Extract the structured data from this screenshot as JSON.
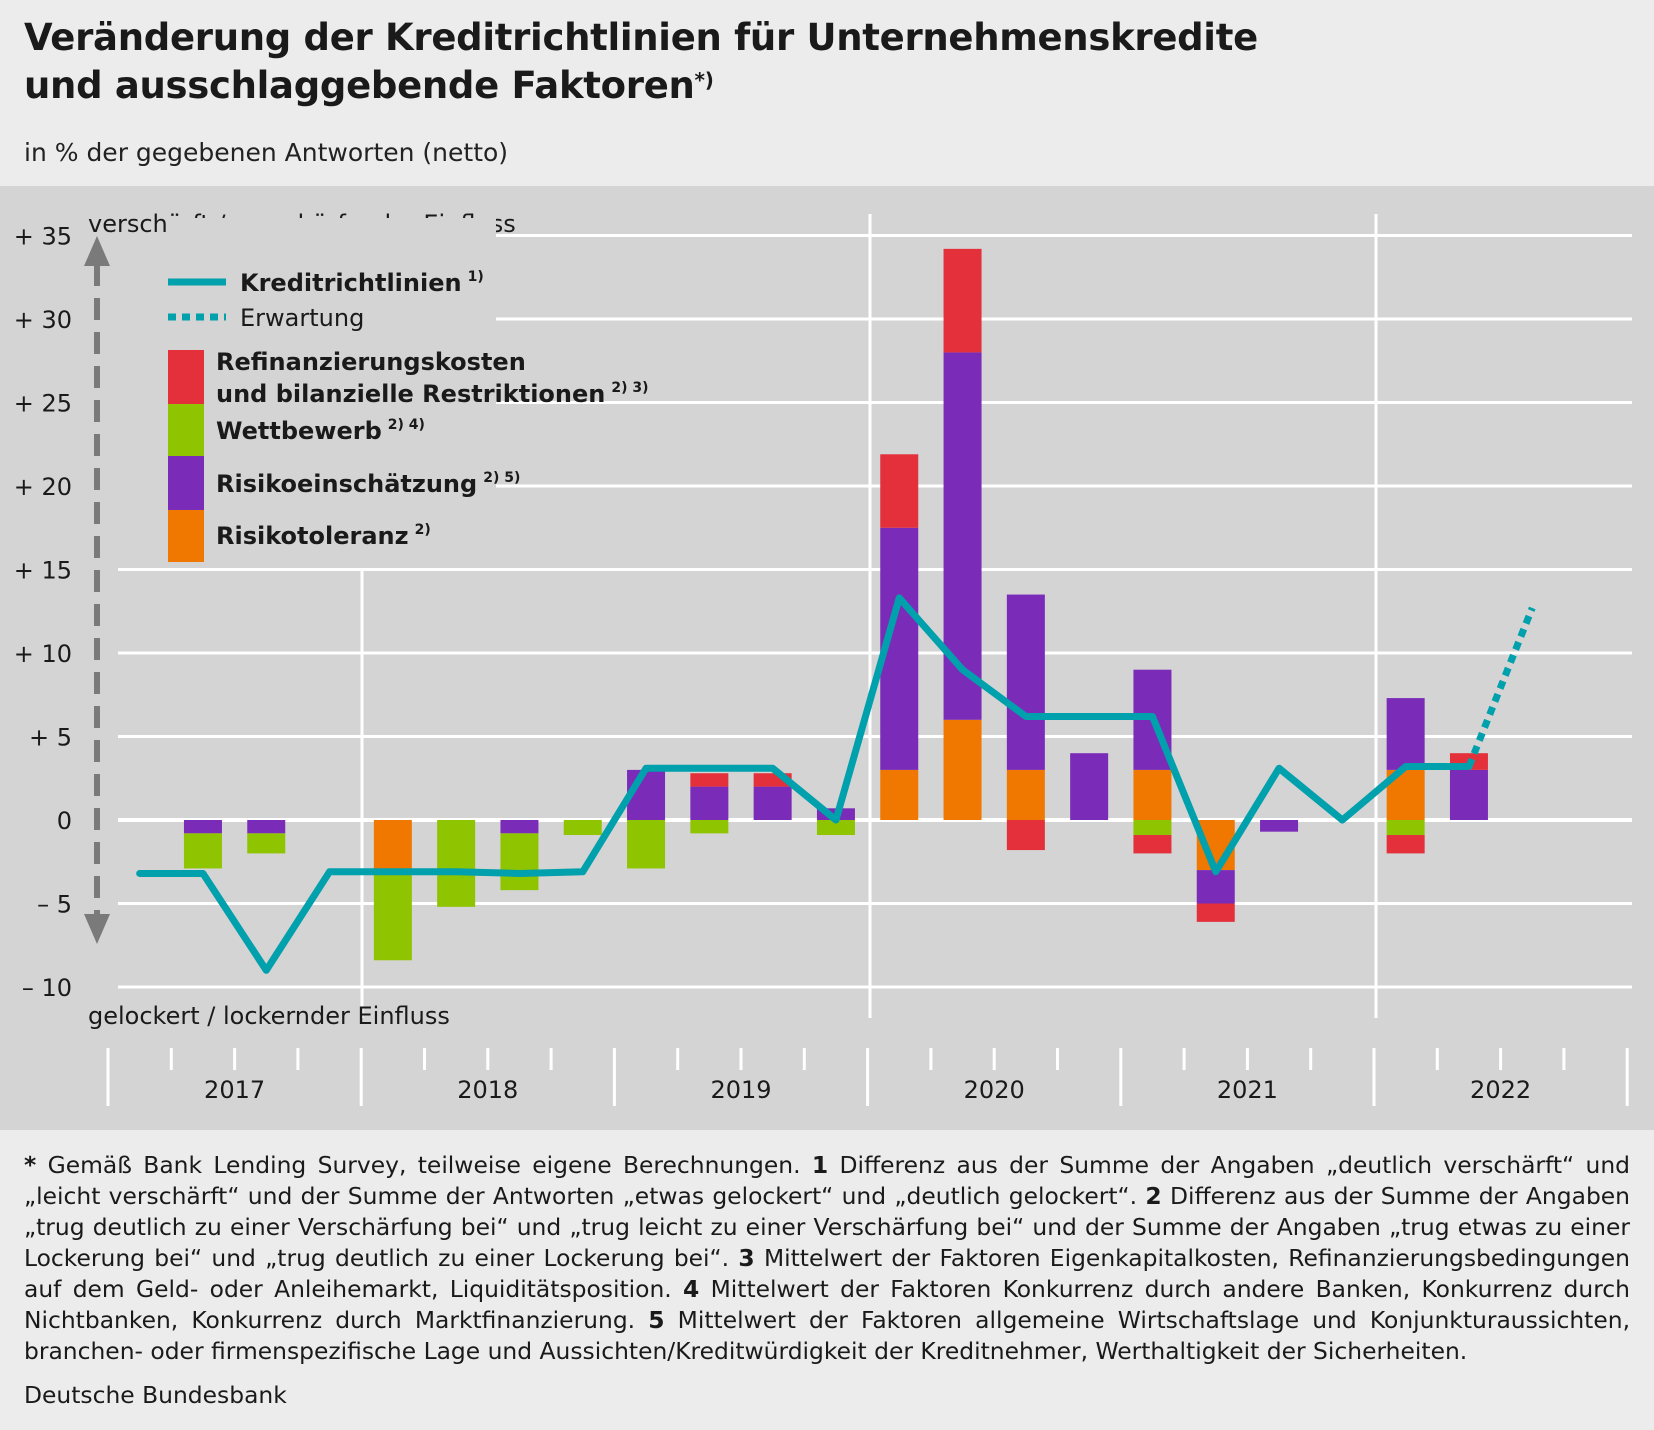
{
  "title_line1": "Veränderung der Kreditrichtlinien für Unternehmenskredite",
  "title_line2": "und ausschlaggebende Faktoren",
  "title_sup": "*)",
  "subtitle": "in % der gegebenen Antworten (netto)",
  "chart_data": {
    "type": "bar",
    "title": "Veränderung der Kreditrichtlinien für Unternehmenskredite und ausschlaggebende Faktoren",
    "ylabel": "in % der gegebenen Antworten (netto)",
    "ylim": [
      -10,
      35
    ],
    "yticks": [
      {
        "value": 35,
        "label": "+ 35"
      },
      {
        "value": 30,
        "label": "+ 30"
      },
      {
        "value": 25,
        "label": "+ 25"
      },
      {
        "value": 20,
        "label": "+ 20"
      },
      {
        "value": 15,
        "label": "+ 15"
      },
      {
        "value": 10,
        "label": "+ 10"
      },
      {
        "value": 5,
        "label": "+  5"
      },
      {
        "value": 0,
        "label": "0"
      },
      {
        "value": -5,
        "label": "–  5"
      },
      {
        "value": -10,
        "label": "– 10"
      }
    ],
    "axis_top_label": "verschärft / verschärfender Einfluss",
    "axis_bottom_label": "gelockert / lockernder Einfluss",
    "years": [
      "2017",
      "2018",
      "2019",
      "2020",
      "2021",
      "2022"
    ],
    "quarters": [
      "2017Q1",
      "2017Q2",
      "2017Q3",
      "2017Q4",
      "2018Q1",
      "2018Q2",
      "2018Q3",
      "2018Q4",
      "2019Q1",
      "2019Q2",
      "2019Q3",
      "2019Q4",
      "2020Q1",
      "2020Q2",
      "2020Q3",
      "2020Q4",
      "2021Q1",
      "2021Q2",
      "2021Q3",
      "2021Q4",
      "2022Q1",
      "2022Q2",
      "2022Q3"
    ],
    "legend": {
      "line": "Kreditrichtlinien",
      "line_sup": "1)",
      "expectation": "Erwartung",
      "refi_line1": "Refinanzierungskosten",
      "refi_line2": "und bilanzielle Restriktionen",
      "refi_sup": "2) 3)",
      "wett": "Wettbewerb",
      "wett_sup": "2) 4)",
      "risiko": "Risikoeinschätzung",
      "risiko_sup": "2) 5)",
      "toleranz": "Risikotoleranz",
      "toleranz_sup": "2)"
    },
    "series": [
      {
        "name": "Risikotoleranz",
        "color": "#f07800",
        "values": [
          0,
          0,
          0,
          0,
          -3,
          0,
          0,
          0,
          0,
          0,
          0,
          0,
          3,
          6,
          3,
          0,
          3,
          -3,
          0,
          0,
          3,
          0,
          null
        ]
      },
      {
        "name": "Risikoeinschätzung",
        "color": "#7a2bb8",
        "values": [
          0,
          -0.8,
          -0.8,
          0,
          0,
          0,
          -0.8,
          0,
          3,
          2,
          2,
          0.7,
          14.5,
          22,
          10.5,
          4,
          6,
          -2,
          -0.7,
          0,
          4.3,
          3,
          null
        ]
      },
      {
        "name": "Wettbewerb",
        "color": "#8ec400",
        "values": [
          0,
          -2.1,
          -1.2,
          0,
          -5.4,
          -5.2,
          -3.4,
          -0.9,
          -2.9,
          -0.8,
          0,
          -0.9,
          0,
          0,
          0,
          0,
          -0.9,
          0,
          0,
          0,
          -0.9,
          0,
          null
        ]
      },
      {
        "name": "Refinanzierungskosten und bilanzielle Restriktionen",
        "color": "#e3303a",
        "values": [
          0,
          0,
          0,
          0,
          0,
          0,
          0,
          0,
          0,
          0.8,
          0.8,
          0,
          4.4,
          6.2,
          -1.8,
          0,
          -1.1,
          -1.1,
          0,
          0,
          -1.1,
          1,
          null
        ]
      },
      {
        "name": "Kreditrichtlinien",
        "type": "line",
        "color": "#00a0ac",
        "values": [
          -3.2,
          -3.2,
          -9,
          -3.1,
          -3.1,
          -3.1,
          -3.2,
          -3.1,
          3.1,
          3.1,
          3.1,
          0,
          13.3,
          9,
          6.2,
          6.2,
          6.2,
          -3.1,
          3.1,
          0,
          3.2,
          3.2,
          null
        ]
      },
      {
        "name": "Erwartung",
        "type": "line_dashed",
        "color": "#00a0ac",
        "values": [
          null,
          null,
          null,
          null,
          null,
          null,
          null,
          null,
          null,
          null,
          null,
          null,
          null,
          null,
          null,
          null,
          null,
          null,
          null,
          null,
          null,
          3.2,
          12.7
        ]
      }
    ]
  },
  "footnote": {
    "star_mark": "*",
    "star_text": " Gemäß Bank Lending Survey, teilweise eigene Berechnungen. ",
    "n1_mark": "1",
    "n1_text": " Differenz aus der Summe der Angaben „deutlich verschärft“ und „leicht verschärft“ und der Summe der Antworten „etwas gelockert“ und „deutlich gelockert“. ",
    "n2_mark": "2",
    "n2_text": " Differenz aus der Summe der Angaben „trug deutlich zu einer Verschärfung bei“ und „trug leicht zu einer Verschärfung bei“ und der Summe der Angaben „trug etwas zu einer Lockerung bei“ und „trug deutlich zu einer Lockerung bei“. ",
    "n3_mark": "3",
    "n3_text": " Mittelwert der Faktoren Eigenkapitalkosten, Refinanzierungsbedingungen auf dem Geld- oder Anleihemarkt, Liquiditätsposition. ",
    "n4_mark": "4",
    "n4_text": " Mittelwert der Faktoren Konkurrenz durch andere Banken, Konkurrenz durch Nichtbanken, Konkurrenz durch Marktfinanzierung. ",
    "n5_mark": "5",
    "n5_text": " Mittelwert der Faktoren allgemeine Wirtschaftslage und Konjunkturaussichten, branchen- oder firmenspezifische Lage und Aussichten/Kreditwürdigkeit der Kreditnehmer, Werthaltigkeit der Sicherheiten."
  },
  "source": "Deutsche Bundesbank"
}
